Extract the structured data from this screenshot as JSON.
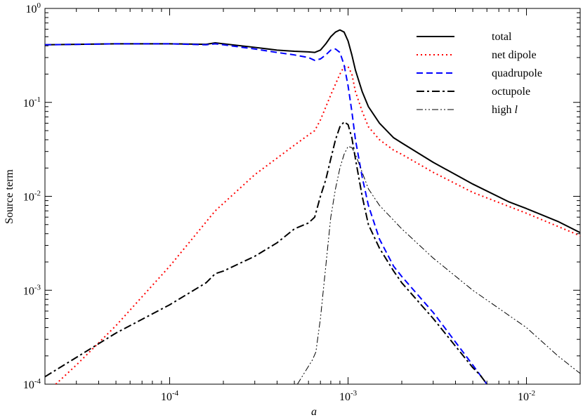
{
  "chart_data": {
    "type": "line",
    "xlabel": "a",
    "ylabel": "Source term",
    "xscale": "log",
    "yscale": "log",
    "xlim": [
      2e-05,
      0.02
    ],
    "ylim": [
      0.0001,
      1
    ],
    "grid": false,
    "legend_position": "top-right",
    "x_ticks": [
      {
        "base": "10",
        "exp": "-4",
        "value": 0.0001
      },
      {
        "base": "10",
        "exp": "-3",
        "value": 0.001
      },
      {
        "base": "10",
        "exp": "-2",
        "value": 0.01
      }
    ],
    "y_ticks": [
      {
        "base": "10",
        "exp": "-4",
        "value": 0.0001
      },
      {
        "base": "10",
        "exp": "-3",
        "value": 0.001
      },
      {
        "base": "10",
        "exp": "-2",
        "value": 0.01
      },
      {
        "base": "10",
        "exp": "-1",
        "value": 0.1
      },
      {
        "base": "10",
        "exp": "0",
        "value": 1
      }
    ],
    "series": [
      {
        "name": "total",
        "italic_suffix": "",
        "color": "#000000",
        "dash": "solid",
        "width": 2,
        "points": [
          [
            2e-05,
            0.41
          ],
          [
            5e-05,
            0.42
          ],
          [
            0.0001,
            0.42
          ],
          [
            0.00016,
            0.415
          ],
          [
            0.00018,
            0.43
          ],
          [
            0.0002,
            0.42
          ],
          [
            0.0003,
            0.385
          ],
          [
            0.0004,
            0.36
          ],
          [
            0.0005,
            0.35
          ],
          [
            0.0006,
            0.345
          ],
          [
            0.00065,
            0.34
          ],
          [
            0.0007,
            0.36
          ],
          [
            0.00075,
            0.42
          ],
          [
            0.0008,
            0.5
          ],
          [
            0.00085,
            0.56
          ],
          [
            0.0009,
            0.59
          ],
          [
            0.00095,
            0.56
          ],
          [
            0.001,
            0.45
          ],
          [
            0.00105,
            0.32
          ],
          [
            0.0011,
            0.22
          ],
          [
            0.0012,
            0.13
          ],
          [
            0.0013,
            0.09
          ],
          [
            0.0015,
            0.06
          ],
          [
            0.0018,
            0.042
          ],
          [
            0.002,
            0.037
          ],
          [
            0.003,
            0.023
          ],
          [
            0.005,
            0.0135
          ],
          [
            0.008,
            0.0087
          ],
          [
            0.01,
            0.0074
          ],
          [
            0.015,
            0.0054
          ],
          [
            0.02,
            0.0041
          ]
        ]
      },
      {
        "name": "net dipole",
        "italic_suffix": "",
        "color": "#ff0000",
        "dash": "dotted",
        "width": 2,
        "points": [
          [
            2.3e-05,
            0.0001
          ],
          [
            3e-05,
            0.00016
          ],
          [
            5e-05,
            0.00042
          ],
          [
            0.0001,
            0.0018
          ],
          [
            0.00018,
            0.007
          ],
          [
            0.0003,
            0.017
          ],
          [
            0.0005,
            0.035
          ],
          [
            0.0006,
            0.045
          ],
          [
            0.00065,
            0.05
          ],
          [
            0.0007,
            0.065
          ],
          [
            0.0008,
            0.12
          ],
          [
            0.0009,
            0.2
          ],
          [
            0.00095,
            0.24
          ],
          [
            0.001,
            0.24
          ],
          [
            0.00105,
            0.2
          ],
          [
            0.0011,
            0.13
          ],
          [
            0.0012,
            0.08
          ],
          [
            0.0013,
            0.055
          ],
          [
            0.0015,
            0.04
          ],
          [
            0.0018,
            0.031
          ],
          [
            0.002,
            0.028
          ],
          [
            0.003,
            0.018
          ],
          [
            0.005,
            0.011
          ],
          [
            0.01,
            0.0066
          ],
          [
            0.02,
            0.0038
          ]
        ]
      },
      {
        "name": "quadrupole",
        "italic_suffix": "",
        "color": "#0000ff",
        "dash": "dashed",
        "width": 2,
        "points": [
          [
            2e-05,
            0.41
          ],
          [
            5e-05,
            0.42
          ],
          [
            0.0001,
            0.42
          ],
          [
            0.00016,
            0.41
          ],
          [
            0.00018,
            0.42
          ],
          [
            0.0002,
            0.41
          ],
          [
            0.0003,
            0.37
          ],
          [
            0.0004,
            0.34
          ],
          [
            0.0005,
            0.32
          ],
          [
            0.0006,
            0.3
          ],
          [
            0.00065,
            0.28
          ],
          [
            0.0007,
            0.29
          ],
          [
            0.00075,
            0.32
          ],
          [
            0.0008,
            0.36
          ],
          [
            0.00085,
            0.37
          ],
          [
            0.0009,
            0.34
          ],
          [
            0.00095,
            0.25
          ],
          [
            0.001,
            0.15
          ],
          [
            0.00105,
            0.08
          ],
          [
            0.0011,
            0.04
          ],
          [
            0.0012,
            0.016
          ],
          [
            0.0013,
            0.008
          ],
          [
            0.0015,
            0.0035
          ],
          [
            0.0018,
            0.0018
          ],
          [
            0.002,
            0.0014
          ],
          [
            0.003,
            0.00058
          ],
          [
            0.005,
            0.00016
          ],
          [
            0.0055,
            0.000125
          ],
          [
            0.006,
            0.0001
          ]
        ]
      },
      {
        "name": "octupole",
        "italic_suffix": "",
        "color": "#000000",
        "dash": "dashdot",
        "width": 2,
        "points": [
          [
            2e-05,
            0.00012
          ],
          [
            5e-05,
            0.00035
          ],
          [
            0.0001,
            0.0007
          ],
          [
            0.00016,
            0.0012
          ],
          [
            0.00018,
            0.0015
          ],
          [
            0.0002,
            0.0016
          ],
          [
            0.0003,
            0.0023
          ],
          [
            0.0004,
            0.0032
          ],
          [
            0.0005,
            0.0045
          ],
          [
            0.0006,
            0.0052
          ],
          [
            0.00065,
            0.006
          ],
          [
            0.0007,
            0.01
          ],
          [
            0.00075,
            0.015
          ],
          [
            0.0008,
            0.025
          ],
          [
            0.00085,
            0.04
          ],
          [
            0.0009,
            0.055
          ],
          [
            0.00095,
            0.062
          ],
          [
            0.001,
            0.058
          ],
          [
            0.00105,
            0.042
          ],
          [
            0.0011,
            0.025
          ],
          [
            0.0012,
            0.01
          ],
          [
            0.0013,
            0.005
          ],
          [
            0.0015,
            0.0028
          ],
          [
            0.0018,
            0.0016
          ],
          [
            0.002,
            0.0012
          ],
          [
            0.003,
            0.0005
          ],
          [
            0.005,
            0.00015
          ],
          [
            0.0055,
            0.000125
          ],
          [
            0.006,
            0.0001
          ]
        ]
      },
      {
        "name": "high ",
        "italic_suffix": "l",
        "color": "#000000",
        "dash": "dashdotdot",
        "width": 1,
        "points": [
          [
            0.00052,
            0.0001
          ],
          [
            0.00058,
            0.00014
          ],
          [
            0.00063,
            0.00018
          ],
          [
            0.00066,
            0.00022
          ],
          [
            0.0007,
            0.0005
          ],
          [
            0.00075,
            0.0018
          ],
          [
            0.0008,
            0.006
          ],
          [
            0.00085,
            0.012
          ],
          [
            0.0009,
            0.02
          ],
          [
            0.00095,
            0.028
          ],
          [
            0.001,
            0.034
          ],
          [
            0.00105,
            0.033
          ],
          [
            0.0011,
            0.028
          ],
          [
            0.0012,
            0.018
          ],
          [
            0.0013,
            0.012
          ],
          [
            0.0015,
            0.008
          ],
          [
            0.002,
            0.0045
          ],
          [
            0.003,
            0.0022
          ],
          [
            0.005,
            0.001
          ],
          [
            0.01,
            0.0004
          ],
          [
            0.015,
            0.0002
          ],
          [
            0.02,
            0.00013
          ]
        ]
      }
    ]
  }
}
